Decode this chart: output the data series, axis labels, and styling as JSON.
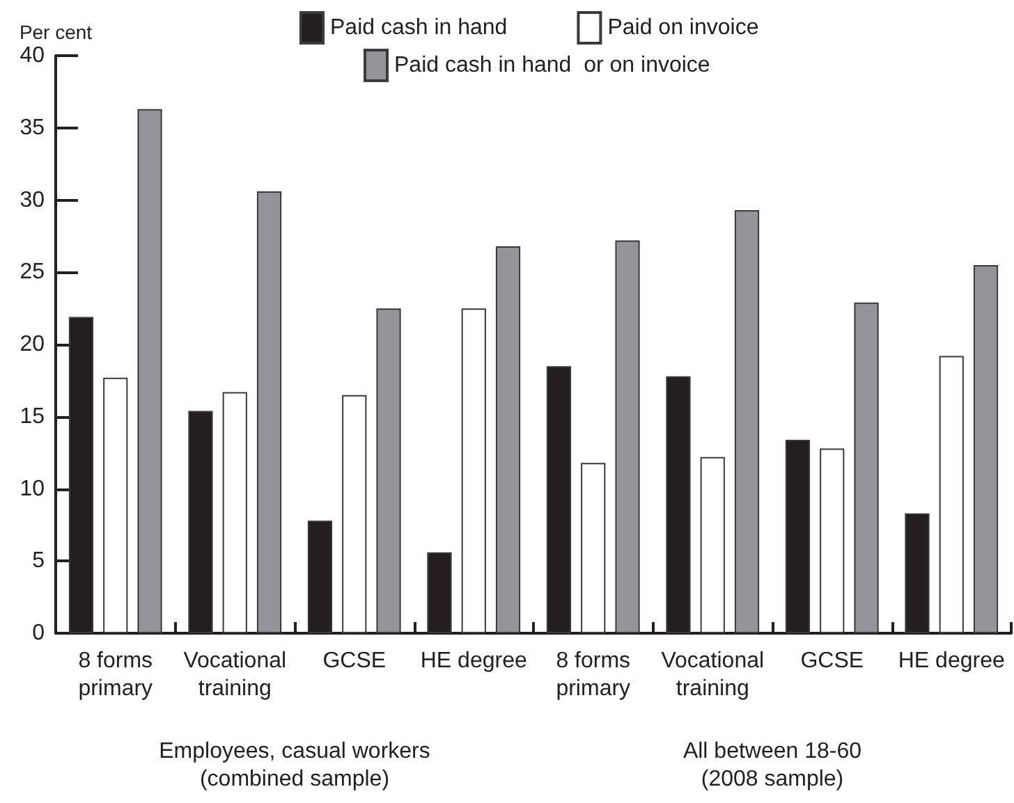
{
  "chart_data": {
    "type": "bar",
    "ylabel": "Per cent",
    "categories": [
      "8 forms\nprimary",
      "Vocational\ntraining",
      "GCSE",
      "HE degree",
      "8 forms\nprimary",
      "Vocational\ntraining",
      "GCSE",
      "HE degree"
    ],
    "series": [
      {
        "name": "Paid cash in hand",
        "color": "#231f20",
        "values": [
          21.9,
          15.4,
          7.8,
          5.6,
          18.5,
          17.8,
          13.4,
          8.3
        ]
      },
      {
        "name": "Paid on invoice",
        "color": "#ffffff",
        "values": [
          17.7,
          16.7,
          16.5,
          22.5,
          11.8,
          12.2,
          12.8,
          19.2
        ]
      },
      {
        "name": "Paid cash in hand  or on invoice",
        "color": "#939598",
        "values": [
          36.3,
          30.6,
          22.5,
          26.8,
          27.2,
          29.3,
          22.9,
          25.5
        ]
      }
    ],
    "ylim": [
      0,
      40
    ],
    "yticks": [
      0,
      5,
      10,
      15,
      20,
      25,
      30,
      35,
      40
    ],
    "grid": false,
    "legend": "top",
    "annotations": [
      "Employees, casual workers\n(combined sample)",
      "All between 18-60\n(2008 sample)"
    ]
  }
}
